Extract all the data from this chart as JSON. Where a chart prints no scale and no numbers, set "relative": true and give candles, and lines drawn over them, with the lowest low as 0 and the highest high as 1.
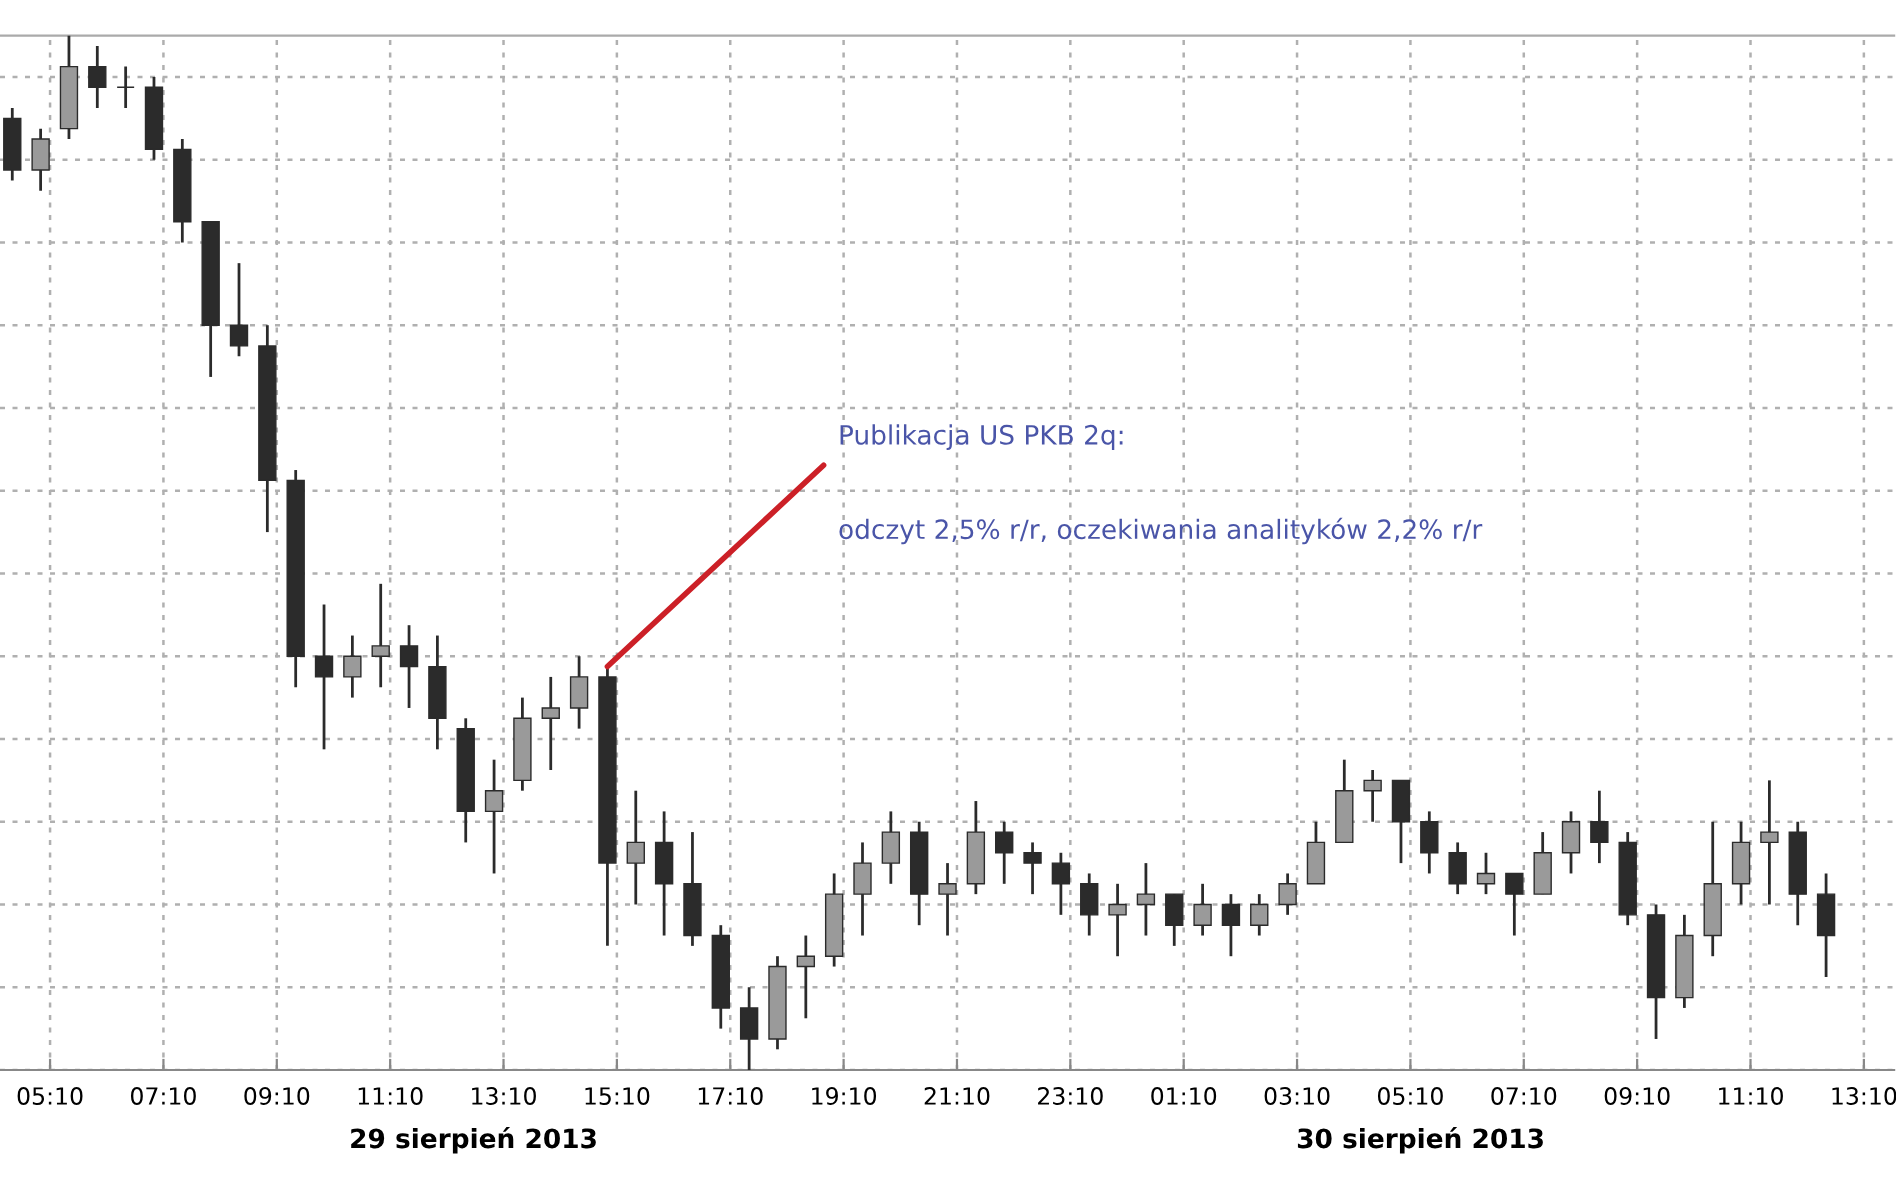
{
  "chart_data": {
    "type": "candlestick",
    "relative": true,
    "color": "#2b2b2b",
    "grid": true,
    "tick_labels": "x",
    "x": [
      "2013-08-29T04:30",
      "2013-08-29T05:00",
      "2013-08-29T05:30",
      "2013-08-29T06:00",
      "2013-08-29T06:30",
      "2013-08-29T07:00",
      "2013-08-29T07:30",
      "2013-08-29T08:00",
      "2013-08-29T08:30",
      "2013-08-29T09:00",
      "2013-08-29T09:30",
      "2013-08-29T10:00",
      "2013-08-29T10:30",
      "2013-08-29T11:00",
      "2013-08-29T11:30",
      "2013-08-29T12:00",
      "2013-08-29T12:30",
      "2013-08-29T13:00",
      "2013-08-29T13:30",
      "2013-08-29T14:00",
      "2013-08-29T14:30",
      "2013-08-29T15:00",
      "2013-08-29T15:30",
      "2013-08-29T16:00",
      "2013-08-29T16:30",
      "2013-08-29T17:00",
      "2013-08-29T17:30",
      "2013-08-29T18:00",
      "2013-08-29T18:30",
      "2013-08-29T19:00",
      "2013-08-29T19:30",
      "2013-08-29T20:00",
      "2013-08-29T20:30",
      "2013-08-29T21:00",
      "2013-08-29T21:30",
      "2013-08-29T22:00",
      "2013-08-29T22:30",
      "2013-08-29T23:00",
      "2013-08-29T23:30",
      "2013-08-30T00:00",
      "2013-08-30T00:30",
      "2013-08-30T01:00",
      "2013-08-30T01:30",
      "2013-08-30T02:00",
      "2013-08-30T02:30",
      "2013-08-30T03:00",
      "2013-08-30T03:30",
      "2013-08-30T04:00",
      "2013-08-30T04:30",
      "2013-08-30T05:00",
      "2013-08-30T05:30",
      "2013-08-30T06:00",
      "2013-08-30T06:30",
      "2013-08-30T07:00",
      "2013-08-30T07:30",
      "2013-08-30T08:00",
      "2013-08-30T08:30",
      "2013-08-30T09:00",
      "2013-08-30T09:30",
      "2013-08-30T10:00",
      "2013-08-30T10:30",
      "2013-08-30T11:00",
      "2013-08-30T11:30",
      "2013-08-30T12:00",
      "2013-08-30T12:30"
    ],
    "ohlc": [
      [
        0.92,
        0.93,
        0.86,
        0.87
      ],
      [
        0.87,
        0.91,
        0.85,
        0.9
      ],
      [
        0.91,
        1.0,
        0.9,
        0.97
      ],
      [
        0.97,
        0.99,
        0.93,
        0.95
      ],
      [
        0.95,
        0.97,
        0.93,
        0.95
      ],
      [
        0.95,
        0.96,
        0.88,
        0.89
      ],
      [
        0.89,
        0.9,
        0.8,
        0.82
      ],
      [
        0.82,
        0.82,
        0.67,
        0.72
      ],
      [
        0.72,
        0.78,
        0.69,
        0.7
      ],
      [
        0.7,
        0.72,
        0.52,
        0.57
      ],
      [
        0.57,
        0.58,
        0.37,
        0.4
      ],
      [
        0.4,
        0.45,
        0.31,
        0.38
      ],
      [
        0.38,
        0.42,
        0.36,
        0.4
      ],
      [
        0.4,
        0.47,
        0.37,
        0.41
      ],
      [
        0.41,
        0.43,
        0.35,
        0.39
      ],
      [
        0.39,
        0.42,
        0.31,
        0.34
      ],
      [
        0.33,
        0.34,
        0.22,
        0.25
      ],
      [
        0.25,
        0.3,
        0.19,
        0.27
      ],
      [
        0.28,
        0.36,
        0.27,
        0.34
      ],
      [
        0.34,
        0.38,
        0.29,
        0.35
      ],
      [
        0.35,
        0.4,
        0.33,
        0.38
      ],
      [
        0.38,
        0.39,
        0.12,
        0.2
      ],
      [
        0.2,
        0.27,
        0.16,
        0.22
      ],
      [
        0.22,
        0.25,
        0.13,
        0.18
      ],
      [
        0.18,
        0.23,
        0.12,
        0.13
      ],
      [
        0.13,
        0.14,
        0.04,
        0.06
      ],
      [
        0.06,
        0.08,
        0.0,
        0.03
      ],
      [
        0.03,
        0.11,
        0.02,
        0.1
      ],
      [
        0.1,
        0.13,
        0.05,
        0.11
      ],
      [
        0.11,
        0.19,
        0.1,
        0.17
      ],
      [
        0.17,
        0.22,
        0.13,
        0.2
      ],
      [
        0.2,
        0.25,
        0.18,
        0.23
      ],
      [
        0.23,
        0.24,
        0.14,
        0.17
      ],
      [
        0.17,
        0.2,
        0.13,
        0.18
      ],
      [
        0.18,
        0.26,
        0.17,
        0.23
      ],
      [
        0.23,
        0.24,
        0.18,
        0.21
      ],
      [
        0.21,
        0.22,
        0.17,
        0.2
      ],
      [
        0.2,
        0.21,
        0.15,
        0.18
      ],
      [
        0.18,
        0.19,
        0.13,
        0.15
      ],
      [
        0.15,
        0.18,
        0.11,
        0.16
      ],
      [
        0.16,
        0.2,
        0.13,
        0.17
      ],
      [
        0.17,
        0.17,
        0.12,
        0.14
      ],
      [
        0.14,
        0.18,
        0.13,
        0.16
      ],
      [
        0.16,
        0.17,
        0.11,
        0.14
      ],
      [
        0.14,
        0.17,
        0.13,
        0.16
      ],
      [
        0.16,
        0.19,
        0.15,
        0.18
      ],
      [
        0.18,
        0.24,
        0.18,
        0.22
      ],
      [
        0.22,
        0.3,
        0.22,
        0.27
      ],
      [
        0.27,
        0.29,
        0.24,
        0.28
      ],
      [
        0.28,
        0.28,
        0.2,
        0.24
      ],
      [
        0.24,
        0.25,
        0.19,
        0.21
      ],
      [
        0.21,
        0.22,
        0.17,
        0.18
      ],
      [
        0.18,
        0.21,
        0.17,
        0.19
      ],
      [
        0.19,
        0.19,
        0.13,
        0.17
      ],
      [
        0.17,
        0.23,
        0.17,
        0.21
      ],
      [
        0.21,
        0.25,
        0.19,
        0.24
      ],
      [
        0.24,
        0.27,
        0.2,
        0.22
      ],
      [
        0.22,
        0.23,
        0.14,
        0.15
      ],
      [
        0.15,
        0.16,
        0.03,
        0.07
      ],
      [
        0.07,
        0.15,
        0.06,
        0.13
      ],
      [
        0.13,
        0.24,
        0.11,
        0.18
      ],
      [
        0.18,
        0.24,
        0.16,
        0.22
      ],
      [
        0.22,
        0.28,
        0.16,
        0.23
      ],
      [
        0.23,
        0.24,
        0.14,
        0.17
      ],
      [
        0.17,
        0.19,
        0.09,
        0.13
      ]
    ],
    "xlim": [
      "2013-08-29T04:17",
      "2013-08-30T13:42"
    ],
    "xticks": [
      {
        "value": "2013-08-29T05:10",
        "label": "05:10"
      },
      {
        "value": "2013-08-29T07:10",
        "label": "07:10"
      },
      {
        "value": "2013-08-29T09:10",
        "label": "09:10"
      },
      {
        "value": "2013-08-29T11:10",
        "label": "11:10"
      },
      {
        "value": "2013-08-29T13:10",
        "label": "13:10"
      },
      {
        "value": "2013-08-29T15:10",
        "label": "15:10"
      },
      {
        "value": "2013-08-29T17:10",
        "label": "17:10"
      },
      {
        "value": "2013-08-29T19:10",
        "label": "19:10"
      },
      {
        "value": "2013-08-29T21:10",
        "label": "21:10"
      },
      {
        "value": "2013-08-29T23:10",
        "label": "23:10"
      },
      {
        "value": "2013-08-30T01:10",
        "label": "01:10"
      },
      {
        "value": "2013-08-30T03:10",
        "label": "03:10"
      },
      {
        "value": "2013-08-30T05:10",
        "label": "05:10"
      },
      {
        "value": "2013-08-30T07:10",
        "label": "07:10"
      },
      {
        "value": "2013-08-30T09:10",
        "label": "09:10"
      },
      {
        "value": "2013-08-30T11:10",
        "label": "11:10"
      },
      {
        "value": "2013-08-30T13:10",
        "label": "13:10"
      }
    ],
    "annotations": [
      {
        "text": "Publikacja US PKB 2q:",
        "x": "2013-08-29T15:00",
        "y": 0.39
      },
      "odczyt 2,5% r/r, oczekiwania analityków 2,2% r/r",
      "29 sierpień 2013",
      "30 sierpień 2013"
    ]
  }
}
